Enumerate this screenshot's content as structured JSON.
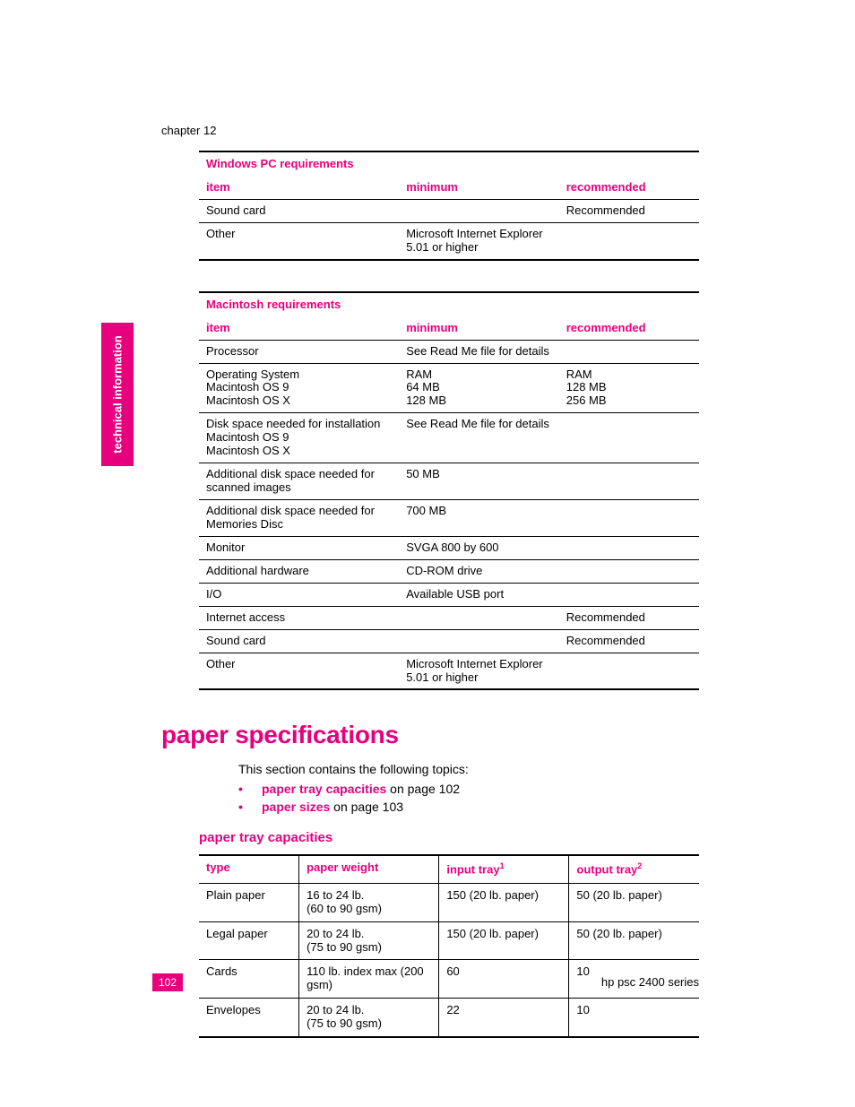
{
  "chapter": "chapter 12",
  "side_tab": "technical information",
  "page_number": "102",
  "product": "hp psc 2400 series",
  "colors": {
    "accent": "#e6007e",
    "text": "#000000",
    "bg": "#ffffff"
  },
  "table1": {
    "title": "Windows PC requirements",
    "headers": [
      "item",
      "minimum",
      "recommended"
    ],
    "rows": [
      [
        "Sound card",
        "",
        "Recommended"
      ],
      [
        "Other",
        "Microsoft Internet Explorer 5.01 or higher",
        ""
      ]
    ]
  },
  "table2": {
    "title": "Macintosh requirements",
    "headers": [
      "item",
      "minimum",
      "recommended"
    ],
    "rows": [
      [
        "Processor",
        "See Read Me file for details",
        ""
      ],
      [
        "Operating System\nMacintosh OS 9\nMacintosh OS X",
        "RAM\n64 MB\n128 MB",
        "RAM\n128 MB\n256 MB"
      ],
      [
        "Disk space needed for installation\nMacintosh OS 9\nMacintosh OS X",
        "See Read Me file for details",
        ""
      ],
      [
        "Additional disk space needed for scanned images",
        "50 MB",
        ""
      ],
      [
        "Additional disk space needed for Memories Disc",
        "700 MB",
        ""
      ],
      [
        "Monitor",
        "SVGA 800 by 600",
        ""
      ],
      [
        "Additional hardware",
        "CD-ROM drive",
        ""
      ],
      [
        "I/O",
        "Available USB port",
        ""
      ],
      [
        "Internet access",
        "",
        "Recommended"
      ],
      [
        "Sound card",
        "",
        "Recommended"
      ],
      [
        "Other",
        "Microsoft Internet Explorer 5.01 or higher",
        ""
      ]
    ]
  },
  "section_heading": "paper specifications",
  "intro_text": "This section contains the following topics:",
  "bullets": [
    {
      "link": "paper tray capacities",
      "rest": " on page 102"
    },
    {
      "link": "paper sizes",
      "rest": " on page 103"
    }
  ],
  "subheading": "paper tray capacities",
  "table3": {
    "headers": [
      "type",
      "paper weight",
      "input tray",
      "output tray"
    ],
    "header_sup": [
      "",
      "",
      "1",
      "2"
    ],
    "rows": [
      [
        "Plain paper",
        "16 to 24 lb.\n(60 to 90 gsm)",
        "150 (20 lb. paper)",
        "50 (20 lb. paper)"
      ],
      [
        "Legal paper",
        "20 to 24 lb.\n(75 to 90 gsm)",
        "150 (20 lb. paper)",
        "50 (20 lb. paper)"
      ],
      [
        "Cards",
        "110 lb. index max (200 gsm)",
        "60",
        "10"
      ],
      [
        "Envelopes",
        "20 to 24 lb.\n(75 to 90 gsm)",
        "22",
        "10"
      ]
    ]
  }
}
